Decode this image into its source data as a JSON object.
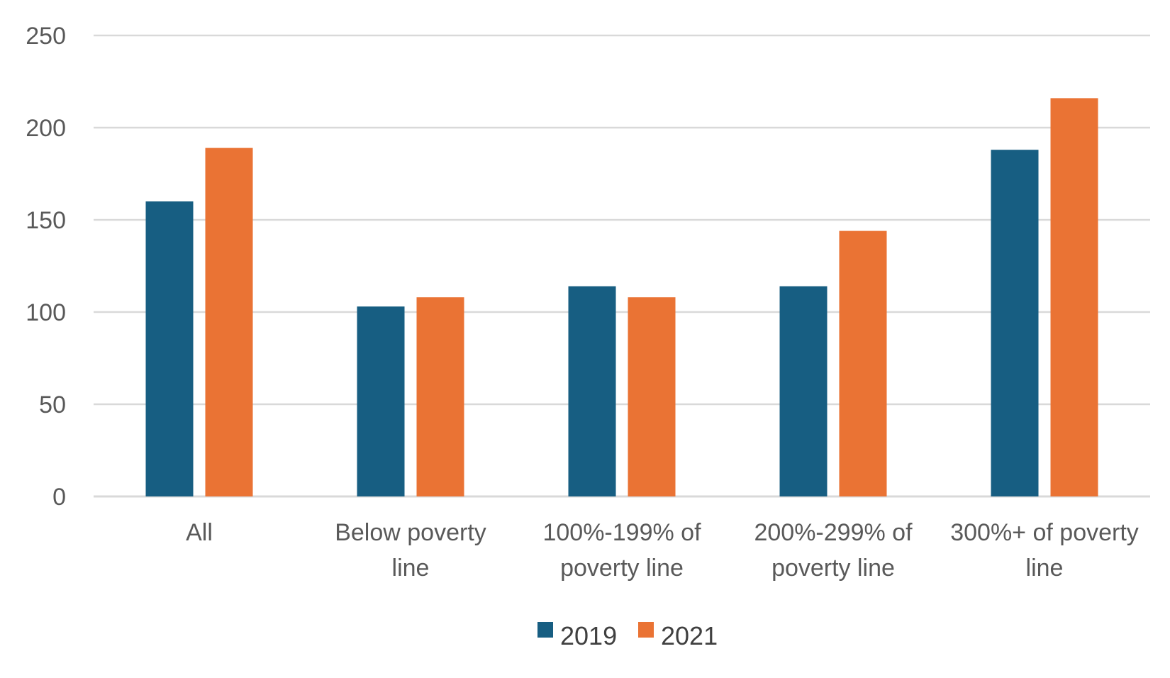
{
  "chart_data": {
    "type": "bar",
    "title": "",
    "xlabel": "",
    "ylabel": "",
    "ylim": [
      0,
      250
    ],
    "yticks": [
      0,
      50,
      100,
      150,
      200,
      250
    ],
    "grid": true,
    "legend_position": "bottom",
    "categories": [
      [
        "All"
      ],
      [
        "Below poverty",
        "line"
      ],
      [
        "100%-199% of",
        "poverty line"
      ],
      [
        "200%-299% of",
        "poverty line"
      ],
      [
        "300%+ of poverty",
        "line"
      ]
    ],
    "series": [
      {
        "name": "2019",
        "color": "#175e82",
        "values": [
          160,
          103,
          114,
          114,
          188
        ]
      },
      {
        "name": "2021",
        "color": "#ea7334",
        "values": [
          189,
          108,
          108,
          144,
          216
        ]
      }
    ]
  }
}
